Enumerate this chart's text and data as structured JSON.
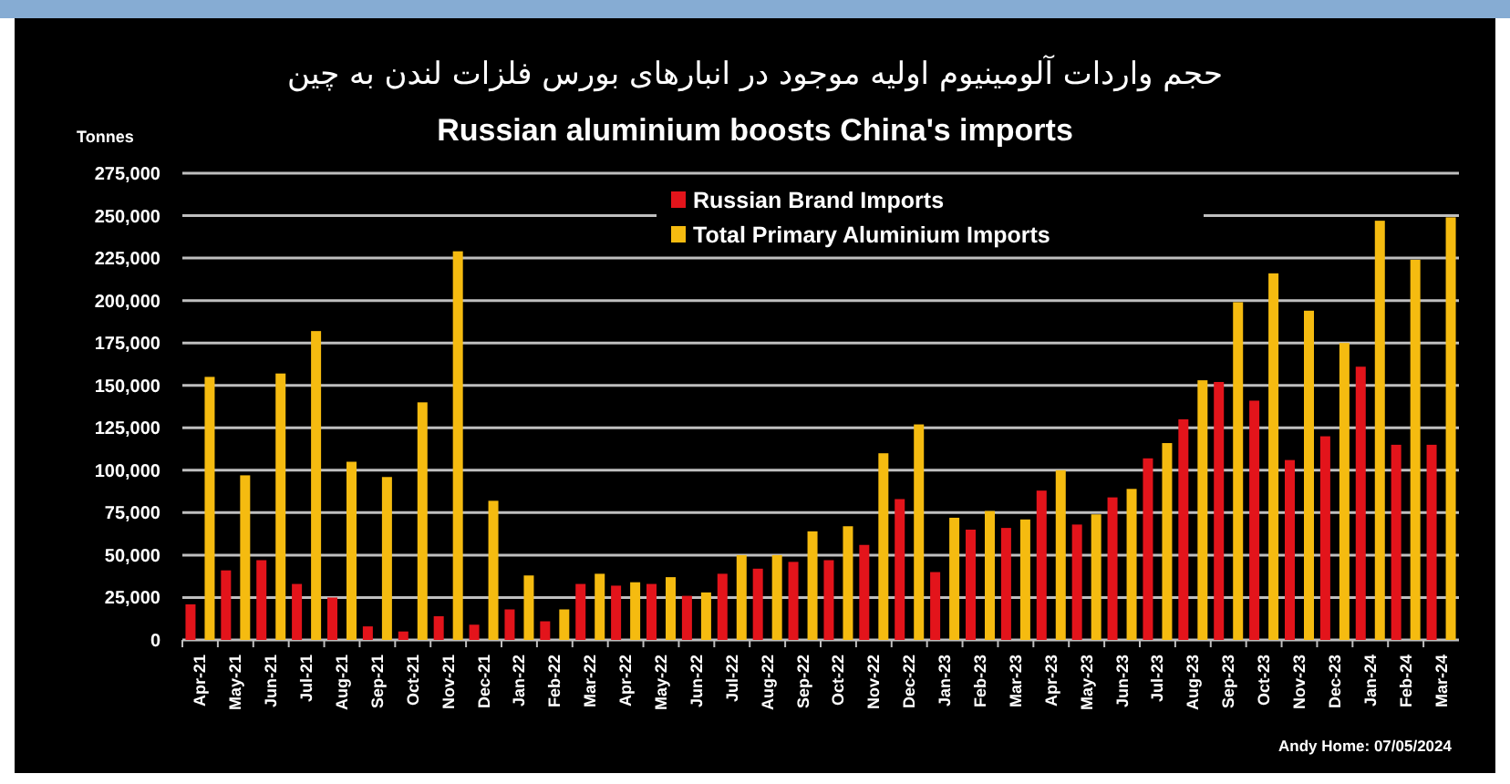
{
  "chart_data": {
    "type": "bar",
    "title": "حجم واردات آلومینیوم اولیه موجود در انبارهای بورس فلزات لندن به چین",
    "subtitle": "Russian aluminium boosts China's imports",
    "ylabel": "Tonnes",
    "annotations": [
      "Andy Home: 07/05/2024"
    ],
    "categories": [
      "Apr-21",
      "May-21",
      "Jun-21",
      "Jul-21",
      "Aug-21",
      "Sep-21",
      "Oct-21",
      "Nov-21",
      "Dec-21",
      "Jan-22",
      "Feb-22",
      "Mar-22",
      "Apr-22",
      "May-22",
      "Jun-22",
      "Jul-22",
      "Aug-22",
      "Sep-22",
      "Oct-22",
      "Nov-22",
      "Dec-22",
      "Jan-23",
      "Feb-23",
      "Mar-23",
      "Apr-23",
      "May-23",
      "Jun-23",
      "Jul-23",
      "Aug-23",
      "Sep-23",
      "Oct-23",
      "Nov-23",
      "Dec-23",
      "Jan-24",
      "Feb-24",
      "Mar-24"
    ],
    "series": [
      {
        "name": "Russian Brand Imports",
        "color": "#e3141b",
        "values": [
          21000,
          41000,
          47000,
          33000,
          25000,
          8000,
          5000,
          14000,
          9000,
          18000,
          11000,
          33000,
          32000,
          33000,
          26000,
          39000,
          42000,
          46000,
          47000,
          56000,
          83000,
          40000,
          65000,
          66000,
          88000,
          68000,
          84000,
          107000,
          130000,
          152000,
          141000,
          106000,
          120000,
          161000,
          115000,
          115000
        ]
      },
      {
        "name": "Total Primary Aluminium Imports",
        "color": "#f5bb10",
        "values": [
          155000,
          97000,
          157000,
          182000,
          105000,
          96000,
          140000,
          229000,
          82000,
          38000,
          18000,
          39000,
          34000,
          37000,
          28000,
          50000,
          50000,
          64000,
          67000,
          110000,
          127000,
          72000,
          76000,
          71000,
          100000,
          74000,
          89000,
          116000,
          153000,
          199000,
          216000,
          194000,
          175000,
          247000,
          224000,
          249000
        ]
      }
    ],
    "ylim": [
      0,
      275000
    ],
    "yticks": [
      0,
      {
        "value": 25000,
        "label": "25,000"
      },
      {
        "value": 50000,
        "label": "50,000"
      },
      {
        "value": 75000,
        "label": "75,000"
      },
      {
        "value": 100000,
        "label": "100,000"
      },
      {
        "value": 125000,
        "label": "125,000"
      },
      {
        "value": 150000,
        "label": "150,000"
      },
      {
        "value": 175000,
        "label": "175,000"
      },
      {
        "value": 200000,
        "label": "200,000"
      },
      {
        "value": 225000,
        "label": "225,000"
      },
      {
        "value": 250000,
        "label": "250,000"
      },
      {
        "value": 275000,
        "label": "275,000"
      }
    ],
    "grid": "y",
    "legend": "top"
  }
}
